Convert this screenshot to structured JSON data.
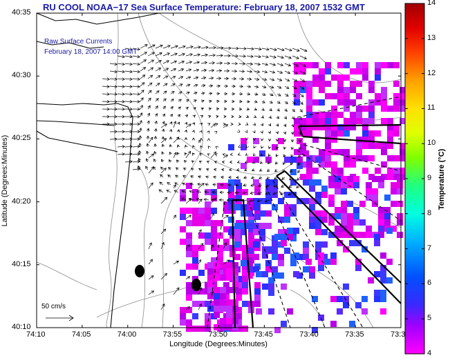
{
  "title": "RU COOL  NOAA−17  Sea Surface Temperature:  February 18, 2007 1532 GMT",
  "legend": {
    "line1": "Raw Surface Currents",
    "line2": "February 18, 2007 14:00 GMT"
  },
  "scale_vector_label": "50 cm/s",
  "axes": {
    "xlabel": "Longitude (Degrees:Minutes)",
    "ylabel": "Latitude (Degrees:Minutes)",
    "xticks": [
      "74:10",
      "74:05",
      "74:00",
      "73:55",
      "73:50",
      "73:45",
      "73:40",
      "73:35",
      "73:3"
    ],
    "yticks": [
      "40:35",
      "40:30",
      "40:25",
      "40:20",
      "40:15",
      "40:10"
    ]
  },
  "colorbar": {
    "title": "Temperature (°C)",
    "ticks": [
      "14",
      "13",
      "12",
      "11",
      "10",
      "9",
      "8",
      "7",
      "6",
      "5",
      "4"
    ],
    "min": 4,
    "max": 14
  },
  "colors": {
    "title": "#1a1aa6",
    "sst_low": "#e600e6",
    "sst_mid": "#3a3aff",
    "coast": "#000000",
    "bathymetry": "#7a7a7a"
  }
}
